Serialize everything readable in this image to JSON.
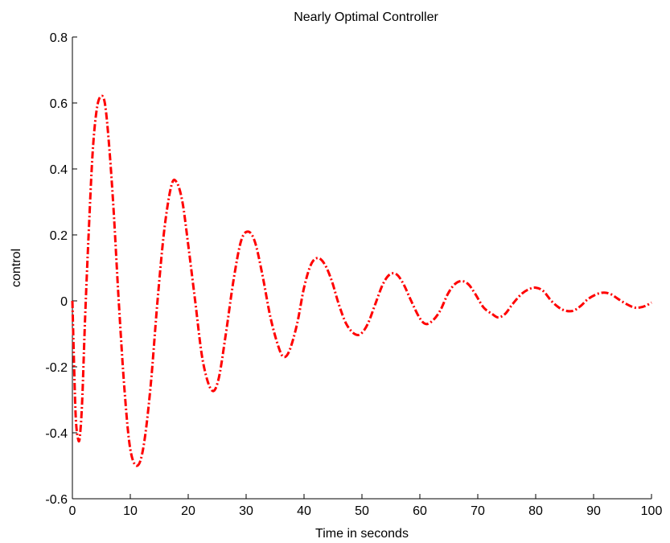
{
  "chart_data": {
    "type": "line",
    "title": "Nearly Optimal Controller",
    "xlabel": "Time in seconds",
    "ylabel": "control",
    "xlim": [
      0,
      100
    ],
    "ylim": [
      -0.6,
      0.8
    ],
    "xticks": [
      0,
      10,
      20,
      30,
      40,
      50,
      60,
      70,
      80,
      90,
      100
    ],
    "yticks": [
      -0.6,
      -0.4,
      -0.2,
      0,
      0.2,
      0.4,
      0.6,
      0.8
    ],
    "xtick_labels": [
      "0",
      "10",
      "20",
      "30",
      "40",
      "50",
      "60",
      "70",
      "80",
      "90",
      "100"
    ],
    "ytick_labels": [
      "-0.6",
      "-0.4",
      "-0.2",
      "0",
      "0.2",
      "0.4",
      "0.6",
      "0.8"
    ],
    "grid": false,
    "line_color": "#ff0000",
    "line_style": "dash-dot",
    "series": [
      {
        "x": [
          0,
          0.3,
          0.6,
          1.0,
          1.3,
          1.7,
          2.2,
          2.8,
          3.5,
          4.2,
          4.9,
          5.6,
          6.3,
          7.1,
          8.0,
          9.0,
          10.0,
          11.2,
          12.3,
          13.5,
          14.7,
          15.9,
          17.1,
          18.0,
          19.0,
          20.0,
          21.2,
          22.5,
          24.0,
          25.2,
          26.5,
          27.8,
          29.1,
          30.3,
          31.5,
          32.8,
          34.2,
          35.6,
          36.5,
          37.5,
          38.8,
          40.0,
          41.2,
          42.4,
          43.6,
          44.8,
          46.0,
          47.3,
          48.7,
          49.8,
          51.0,
          52.3,
          53.6,
          54.8,
          56.0,
          57.2,
          58.5,
          59.9,
          61.0,
          62.2,
          63.5,
          64.8,
          66.0,
          67.2,
          68.4,
          69.6,
          71.0,
          72.5,
          73.5,
          74.7,
          76.0,
          77.5,
          78.8,
          80.0,
          81.3,
          82.7,
          84.0,
          85.2,
          86.5,
          87.8,
          89.0,
          90.5,
          91.8,
          93.0,
          94.3,
          95.7,
          97.0,
          98.0,
          99.0,
          100.0
        ],
        "y": [
          0,
          -0.2,
          -0.36,
          -0.42,
          -0.41,
          -0.3,
          -0.05,
          0.2,
          0.45,
          0.58,
          0.62,
          0.6,
          0.48,
          0.28,
          0.0,
          -0.27,
          -0.45,
          -0.5,
          -0.44,
          -0.26,
          0.0,
          0.22,
          0.35,
          0.36,
          0.3,
          0.17,
          0.0,
          -0.18,
          -0.27,
          -0.24,
          -0.1,
          0.06,
          0.18,
          0.21,
          0.18,
          0.08,
          -0.05,
          -0.14,
          -0.17,
          -0.15,
          -0.07,
          0.04,
          0.11,
          0.13,
          0.11,
          0.06,
          -0.01,
          -0.07,
          -0.1,
          -0.1,
          -0.07,
          -0.01,
          0.05,
          0.08,
          0.08,
          0.05,
          0.0,
          -0.05,
          -0.07,
          -0.06,
          -0.03,
          0.02,
          0.05,
          0.06,
          0.05,
          0.02,
          -0.02,
          -0.04,
          -0.05,
          -0.04,
          -0.01,
          0.02,
          0.035,
          0.04,
          0.03,
          0.0,
          -0.02,
          -0.03,
          -0.03,
          -0.015,
          0.005,
          0.02,
          0.025,
          0.02,
          0.005,
          -0.01,
          -0.02,
          -0.02,
          -0.015,
          -0.005
        ]
      }
    ]
  }
}
